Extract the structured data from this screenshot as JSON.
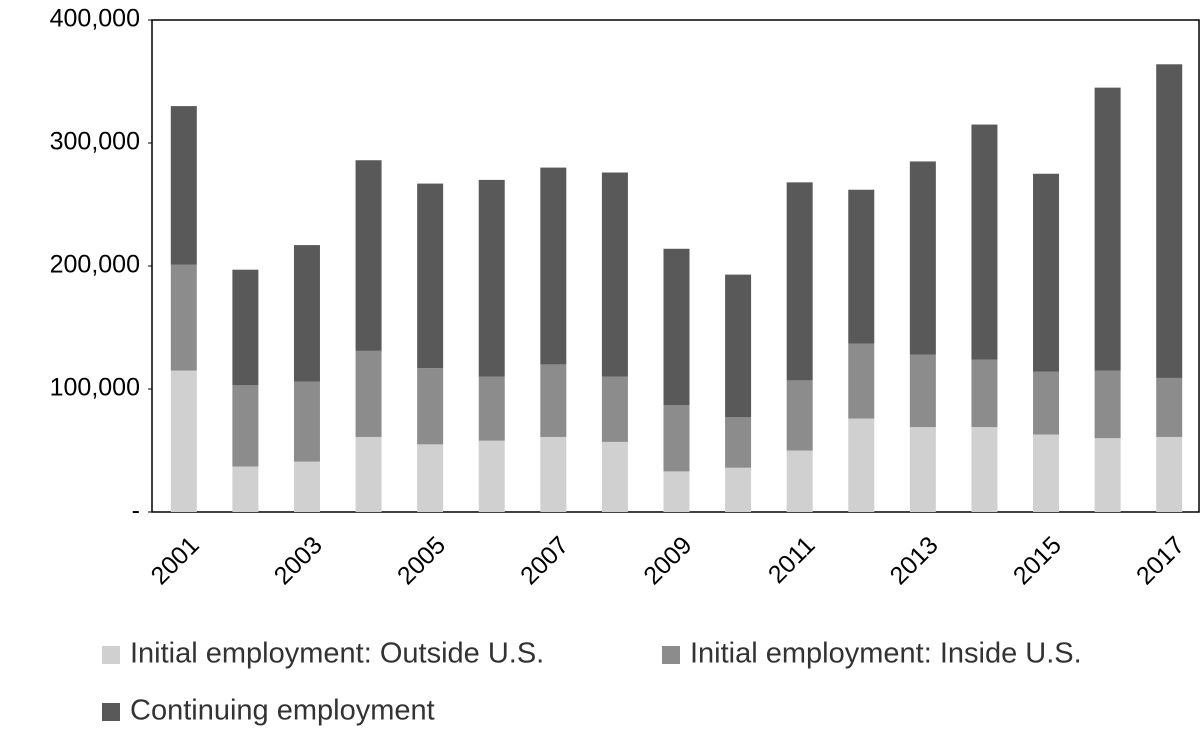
{
  "chart_data": {
    "type": "stacked_bar",
    "categories": [
      "2001",
      null,
      "2003",
      null,
      "2005",
      null,
      "2007",
      null,
      "2009",
      null,
      "2011",
      null,
      "2013",
      null,
      "2015",
      null,
      "2017"
    ],
    "series": [
      {
        "name": "Initial employment: Outside U.S.",
        "color": "#d0d0d0",
        "values": [
          115000,
          37000,
          41000,
          61000,
          55000,
          58000,
          61000,
          57000,
          33000,
          36000,
          50000,
          76000,
          69000,
          69000,
          63000,
          60000,
          61000
        ]
      },
      {
        "name": "Initial employment: Inside U.S.",
        "color": "#8c8c8c",
        "values": [
          86000,
          66000,
          65000,
          70000,
          62000,
          52000,
          59000,
          53000,
          54000,
          41000,
          57000,
          61000,
          59000,
          55000,
          51000,
          55000,
          48000
        ]
      },
      {
        "name": "Continuing employment",
        "color": "#595959",
        "values": [
          129000,
          94000,
          111000,
          155000,
          150000,
          160000,
          160000,
          166000,
          127000,
          116000,
          161000,
          125000,
          157000,
          191000,
          161000,
          230000,
          255000
        ]
      }
    ],
    "ylim": [
      0,
      400000
    ],
    "yticks": [
      {
        "value": 0,
        "label": "-"
      },
      {
        "value": 100000,
        "label": "100,000"
      },
      {
        "value": 200000,
        "label": "200,000"
      },
      {
        "value": 300000,
        "label": "300,000"
      },
      {
        "value": 400000,
        "label": "400,000"
      }
    ],
    "legend": "bottom"
  }
}
